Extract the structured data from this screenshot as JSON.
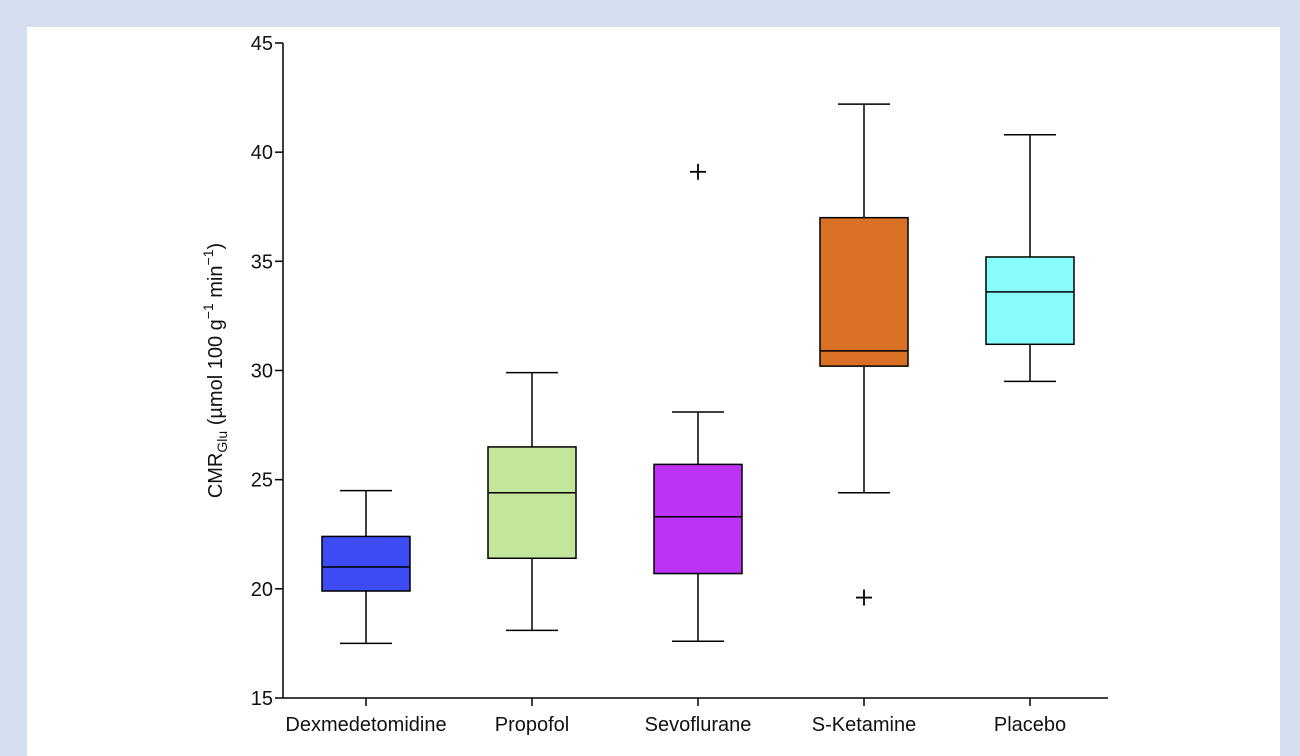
{
  "chart_data": {
    "type": "box",
    "ylabel": {
      "main": "CMR",
      "sub": "Glu",
      "unit_prefix": " (µmol 100 g",
      "exp1": "−1",
      "unit_mid": " min",
      "exp2": "−1",
      "unit_suffix": ")"
    },
    "ylim": [
      15,
      45
    ],
    "yticks": [
      15,
      20,
      25,
      30,
      35,
      40,
      45
    ],
    "grid": false,
    "categories": [
      "Dexmedetomidine",
      "Propofol",
      "Sevoflurane",
      "S-Ketamine",
      "Placebo"
    ],
    "boxes": [
      {
        "category": "Dexmedetomidine",
        "whisker_low": 17.5,
        "q1": 19.9,
        "median": 21.0,
        "q3": 22.4,
        "whisker_high": 24.5,
        "outliers": [],
        "color": "#3d4bf5"
      },
      {
        "category": "Propofol",
        "whisker_low": 18.1,
        "q1": 21.4,
        "median": 24.4,
        "q3": 26.5,
        "whisker_high": 29.9,
        "outliers": [],
        "color": "#c3e59c"
      },
      {
        "category": "Sevoflurane",
        "whisker_low": 17.6,
        "q1": 20.7,
        "median": 23.3,
        "q3": 25.7,
        "whisker_high": 28.1,
        "outliers": [
          39.1
        ],
        "color": "#bd32f7"
      },
      {
        "category": "S-Ketamine",
        "whisker_low": 24.4,
        "q1": 30.2,
        "median": 30.9,
        "q3": 37.0,
        "whisker_high": 42.2,
        "outliers": [
          19.6
        ],
        "color": "#d97124"
      },
      {
        "category": "Placebo",
        "whisker_low": 29.5,
        "q1": 31.2,
        "median": 33.6,
        "q3": 35.2,
        "whisker_high": 40.8,
        "outliers": [],
        "color": "#88fbfb"
      }
    ]
  }
}
